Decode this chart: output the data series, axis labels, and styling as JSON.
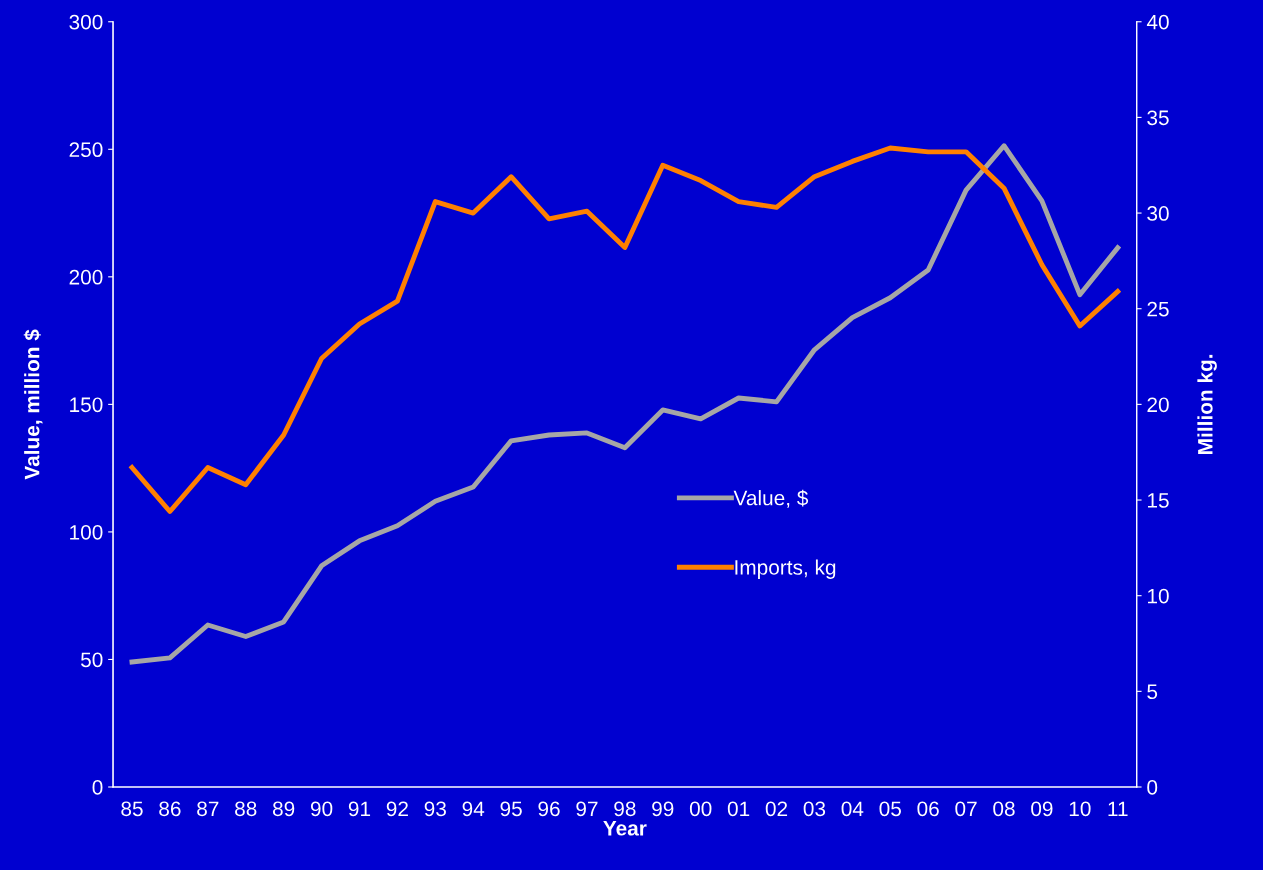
{
  "chart_data": {
    "type": "line",
    "categories": [
      "85",
      "86",
      "87",
      "88",
      "89",
      "90",
      "91",
      "92",
      "93",
      "94",
      "95",
      "96",
      "97",
      "98",
      "99",
      "00",
      "01",
      "02",
      "03",
      "04",
      "05",
      "06",
      "07",
      "08",
      "09",
      "10",
      "11"
    ],
    "series": [
      {
        "name": "Value, $",
        "color": "#a6a6a6",
        "values": [
          49,
          50.6,
          63.5,
          59,
          64.7,
          86.7,
          96.5,
          102.4,
          112,
          117.6,
          135.7,
          138,
          138.8,
          133,
          147.8,
          144.3,
          152.5,
          151,
          171.4,
          184,
          191.8,
          202.7,
          234,
          251.4,
          229.8,
          193,
          211.4
        ]
      },
      {
        "name": "Imports, kg",
        "color": "#ff8000",
        "axis": "y2",
        "values": [
          16.7,
          14.4,
          16.7,
          15.8,
          18.4,
          22.4,
          24.2,
          25.4,
          30.6,
          30.0,
          31.9,
          29.7,
          30.1,
          28.2,
          32.5,
          31.7,
          30.6,
          30.3,
          31.9,
          32.7,
          33.4,
          33.2,
          33.2,
          31.3,
          27.3,
          24.1,
          25.9
        ]
      }
    ],
    "xlabel": "Year",
    "ylabel": "Value, million $",
    "y2label": "Million kg.",
    "ylim": [
      0,
      300
    ],
    "yticks": [
      0,
      50,
      100,
      150,
      200,
      250,
      300
    ],
    "y2lim": [
      0,
      40
    ],
    "y2ticks": [
      0,
      5,
      10,
      15,
      20,
      25,
      30,
      35,
      40
    ],
    "legend": "center",
    "grid": false,
    "marker": "none",
    "line_style": "solid"
  }
}
